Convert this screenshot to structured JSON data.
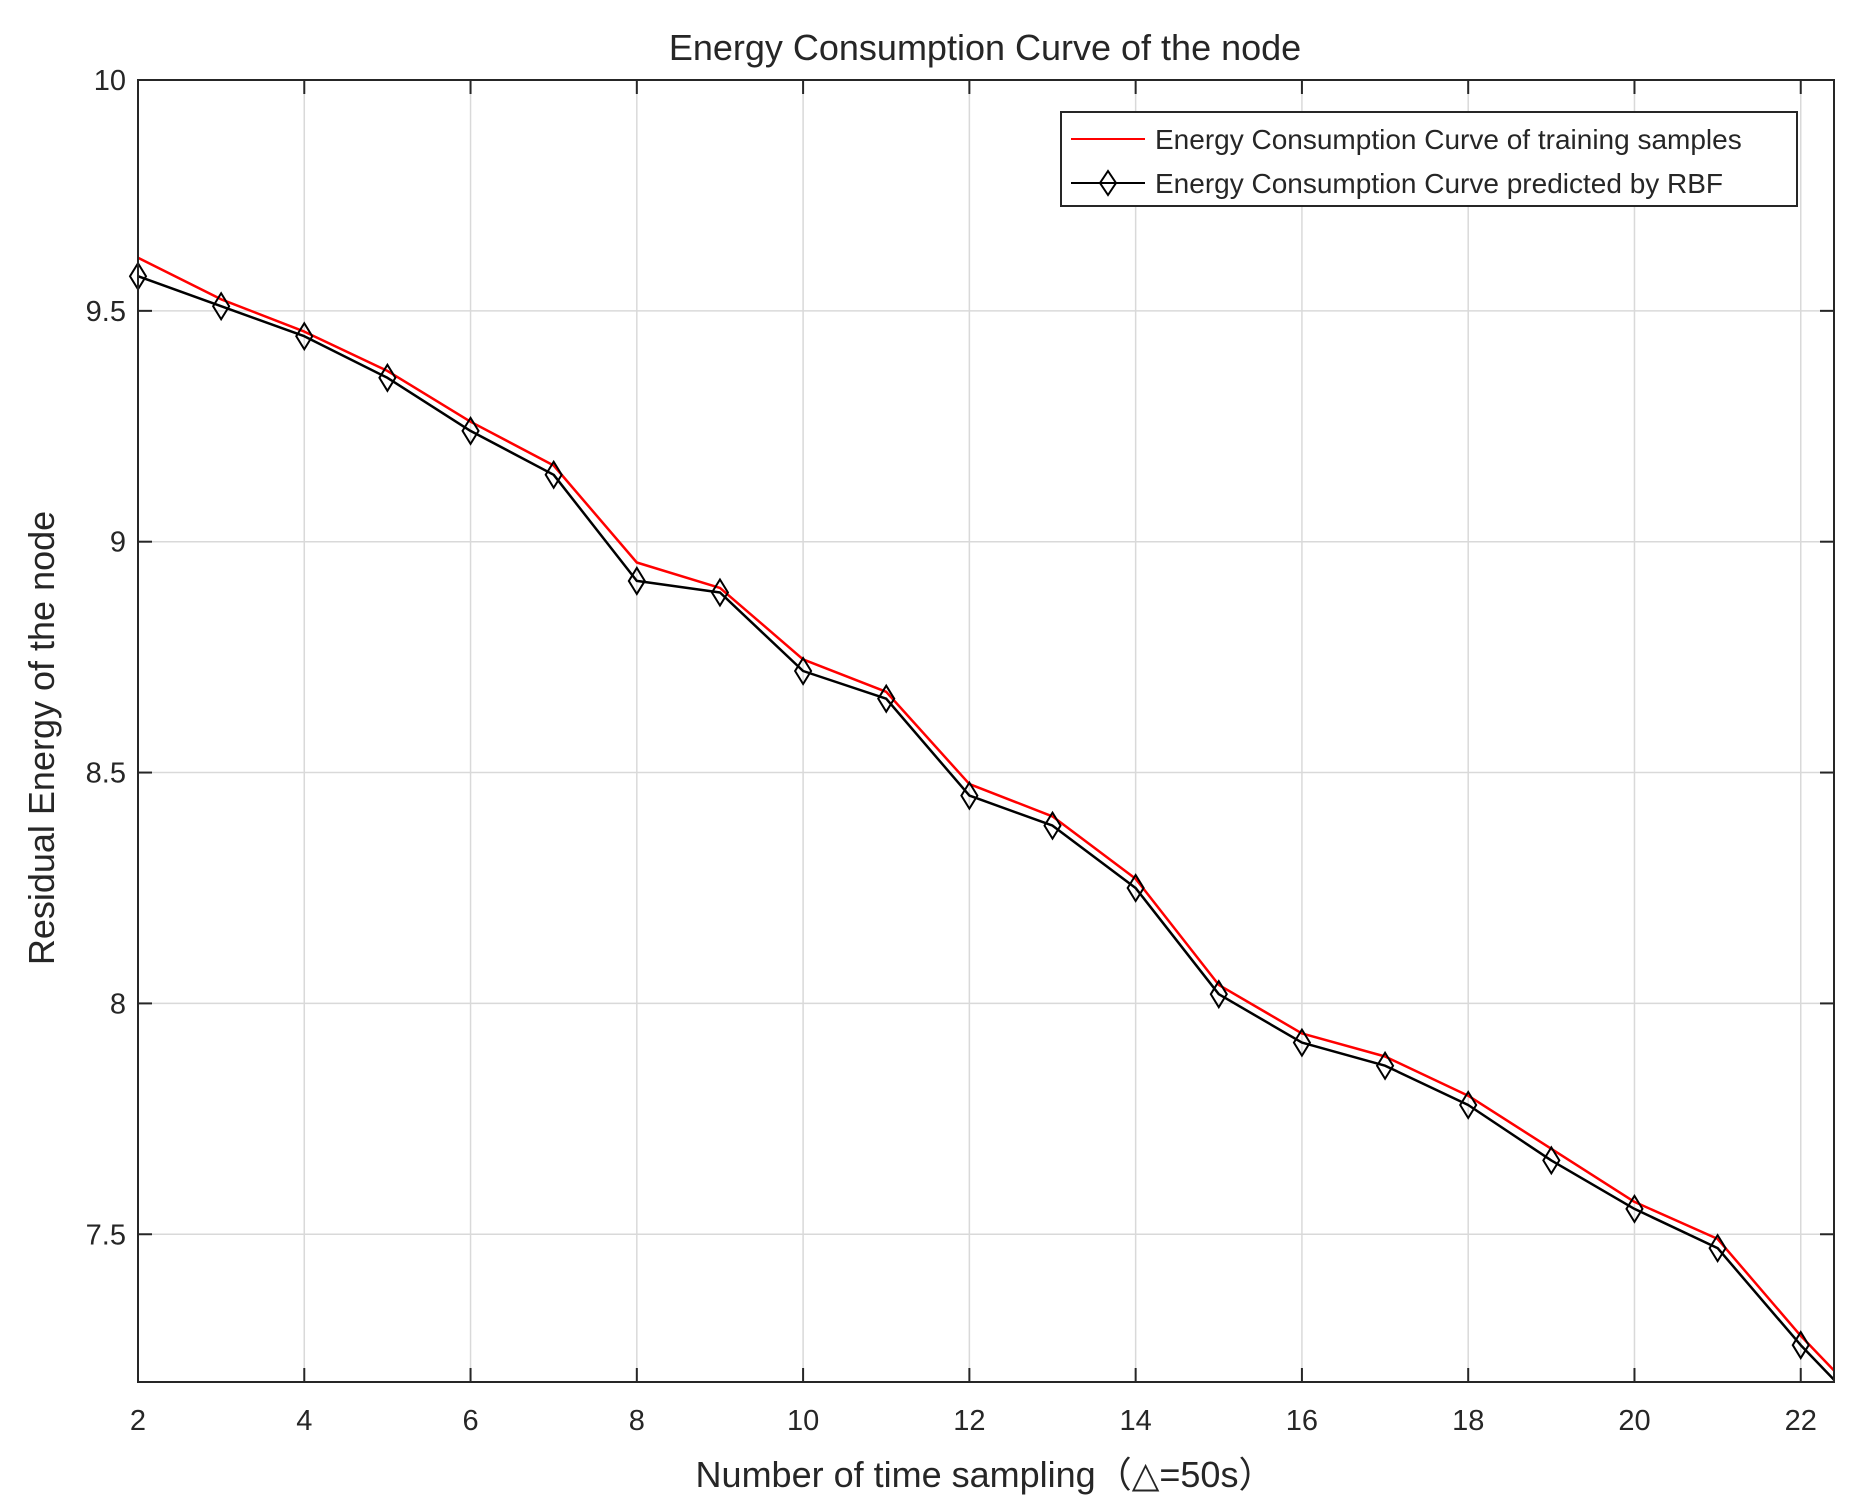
{
  "chart_data": {
    "type": "line",
    "title": "Energy Consumption Curve of the node",
    "xlabel": "Number of time sampling（△=50s）",
    "ylabel": "Residual Energy of the node",
    "xlim": [
      2,
      22.4
    ],
    "ylim": [
      7.18,
      10
    ],
    "xticks": [
      2,
      4,
      6,
      8,
      10,
      12,
      14,
      16,
      18,
      20,
      22
    ],
    "yticks": [
      7.5,
      8,
      8.5,
      9,
      9.5,
      10
    ],
    "xtick_labels": [
      "2",
      "4",
      "6",
      "8",
      "10",
      "12",
      "14",
      "16",
      "18",
      "20",
      "22"
    ],
    "ytick_labels": [
      "7.5",
      "8",
      "8.5",
      "9",
      "9.5",
      "10"
    ],
    "grid": true,
    "legend_position": "top-right",
    "x": [
      2,
      3,
      4,
      5,
      6,
      7,
      8,
      9,
      10,
      11,
      12,
      13,
      14,
      15,
      16,
      17,
      18,
      19,
      20,
      21,
      22,
      22.4
    ],
    "series": [
      {
        "name": "Energy Consumption Curve of training samples",
        "color": "#ff0000",
        "marker": "none",
        "values": [
          9.615,
          9.525,
          9.455,
          9.37,
          9.26,
          9.165,
          8.955,
          8.9,
          8.745,
          8.675,
          8.475,
          8.405,
          8.27,
          8.04,
          7.935,
          7.885,
          7.8,
          7.685,
          7.57,
          7.49,
          7.28,
          7.205
        ]
      },
      {
        "name": "Energy Consumption Curve predicted by RBF",
        "color": "#000000",
        "marker": "diamond",
        "values": [
          9.575,
          9.51,
          9.445,
          9.355,
          9.24,
          9.145,
          8.915,
          8.89,
          8.72,
          8.66,
          8.45,
          8.385,
          8.25,
          8.02,
          7.915,
          7.865,
          7.78,
          7.66,
          7.555,
          7.47,
          7.26,
          7.185
        ]
      }
    ]
  }
}
